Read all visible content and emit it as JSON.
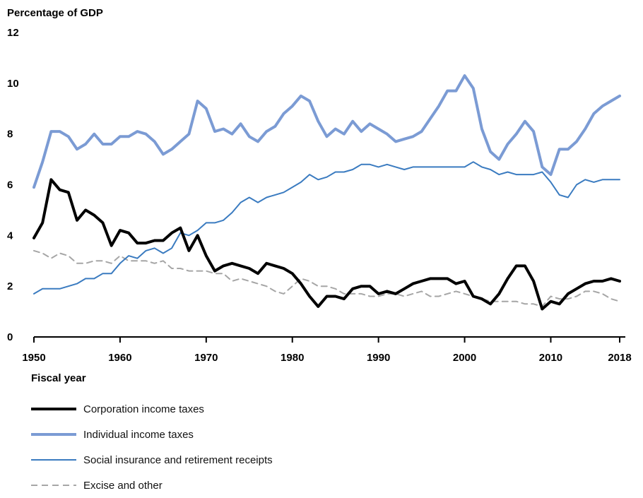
{
  "chart_data": {
    "type": "line",
    "ylabel": "Percentage of GDP",
    "xlabel": "Fiscal year",
    "xlim": [
      1950,
      2018
    ],
    "ylim": [
      0,
      12
    ],
    "xticks": [
      "1950",
      "1960",
      "1970",
      "1980",
      "1990",
      "2000",
      "2010",
      "2018"
    ],
    "yticks": [
      "0",
      "2",
      "4",
      "6",
      "8",
      "10",
      "12"
    ],
    "grid": false,
    "legend_position": "bottom",
    "x": [
      1950,
      1951,
      1952,
      1953,
      1954,
      1955,
      1956,
      1957,
      1958,
      1959,
      1960,
      1961,
      1962,
      1963,
      1964,
      1965,
      1966,
      1967,
      1968,
      1969,
      1970,
      1971,
      1972,
      1973,
      1974,
      1975,
      1976,
      1977,
      1978,
      1979,
      1980,
      1981,
      1982,
      1983,
      1984,
      1985,
      1986,
      1987,
      1988,
      1989,
      1990,
      1991,
      1992,
      1993,
      1994,
      1995,
      1996,
      1997,
      1998,
      1999,
      2000,
      2001,
      2002,
      2003,
      2004,
      2005,
      2006,
      2007,
      2008,
      2009,
      2010,
      2011,
      2012,
      2013,
      2014,
      2015,
      2016,
      2017,
      2018
    ],
    "series": [
      {
        "name": "Corporation income taxes",
        "color": "#000000",
        "style": "solid-thick",
        "values": [
          3.9,
          4.5,
          6.2,
          5.8,
          5.7,
          4.6,
          5.0,
          4.8,
          4.5,
          3.6,
          4.2,
          4.1,
          3.7,
          3.7,
          3.8,
          3.8,
          4.1,
          4.3,
          3.4,
          4.0,
          3.2,
          2.6,
          2.8,
          2.9,
          2.8,
          2.7,
          2.5,
          2.9,
          2.8,
          2.7,
          2.5,
          2.1,
          1.6,
          1.2,
          1.6,
          1.6,
          1.5,
          1.9,
          2.0,
          2.0,
          1.7,
          1.8,
          1.7,
          1.9,
          2.1,
          2.2,
          2.3,
          2.3,
          2.3,
          2.1,
          2.2,
          1.6,
          1.5,
          1.3,
          1.7,
          2.3,
          2.8,
          2.8,
          2.2,
          1.1,
          1.4,
          1.3,
          1.7,
          1.9,
          2.1,
          2.2,
          2.2,
          2.3,
          2.2
        ]
      },
      {
        "name": "Individual income taxes",
        "color": "#7B9BD4",
        "style": "solid-thick",
        "values": [
          5.9,
          6.9,
          8.1,
          8.1,
          7.9,
          7.4,
          7.6,
          8.0,
          7.6,
          7.6,
          7.9,
          7.9,
          8.1,
          8.0,
          7.7,
          7.2,
          7.4,
          7.7,
          8.0,
          9.3,
          9.0,
          8.1,
          8.2,
          8.0,
          8.4,
          7.9,
          7.7,
          8.1,
          8.3,
          8.8,
          9.1,
          9.5,
          9.3,
          8.5,
          7.9,
          8.2,
          8.0,
          8.5,
          8.1,
          8.4,
          8.2,
          8.0,
          7.7,
          7.8,
          7.9,
          8.1,
          8.6,
          9.1,
          9.7,
          9.7,
          10.3,
          9.8,
          8.2,
          7.3,
          7.0,
          7.6,
          8.0,
          8.5,
          8.1,
          6.7,
          6.4,
          7.4,
          7.4,
          7.7,
          8.2,
          8.8,
          9.1,
          9.3,
          9.5
        ]
      },
      {
        "name": "Social insurance and retirement receipts",
        "color": "#3A7BC0",
        "style": "solid-thin",
        "values": [
          1.7,
          1.9,
          1.9,
          1.9,
          2.0,
          2.1,
          2.3,
          2.3,
          2.5,
          2.5,
          2.9,
          3.2,
          3.1,
          3.4,
          3.5,
          3.3,
          3.5,
          4.1,
          4.0,
          4.2,
          4.5,
          4.5,
          4.6,
          4.9,
          5.3,
          5.5,
          5.3,
          5.5,
          5.6,
          5.7,
          5.9,
          6.1,
          6.4,
          6.2,
          6.3,
          6.5,
          6.5,
          6.6,
          6.8,
          6.8,
          6.7,
          6.8,
          6.7,
          6.6,
          6.7,
          6.7,
          6.7,
          6.7,
          6.7,
          6.7,
          6.7,
          6.9,
          6.7,
          6.6,
          6.4,
          6.5,
          6.4,
          6.4,
          6.4,
          6.5,
          6.1,
          5.6,
          5.5,
          6.0,
          6.2,
          6.1,
          6.2,
          6.2,
          6.2
        ]
      },
      {
        "name": "Excise and other",
        "color": "#A6A6A6",
        "style": "dashed",
        "values": [
          3.4,
          3.3,
          3.1,
          3.3,
          3.2,
          2.9,
          2.9,
          3.0,
          3.0,
          2.9,
          3.2,
          3.0,
          3.0,
          3.0,
          2.9,
          3.0,
          2.7,
          2.7,
          2.6,
          2.6,
          2.6,
          2.5,
          2.5,
          2.2,
          2.3,
          2.2,
          2.1,
          2.0,
          1.8,
          1.7,
          2.0,
          2.3,
          2.2,
          2.0,
          2.0,
          1.9,
          1.7,
          1.7,
          1.7,
          1.6,
          1.6,
          1.7,
          1.7,
          1.6,
          1.7,
          1.8,
          1.6,
          1.6,
          1.7,
          1.8,
          1.7,
          1.6,
          1.5,
          1.4,
          1.4,
          1.4,
          1.4,
          1.3,
          1.3,
          1.2,
          1.6,
          1.5,
          1.5,
          1.6,
          1.8,
          1.8,
          1.7,
          1.5,
          1.4
        ]
      }
    ]
  }
}
